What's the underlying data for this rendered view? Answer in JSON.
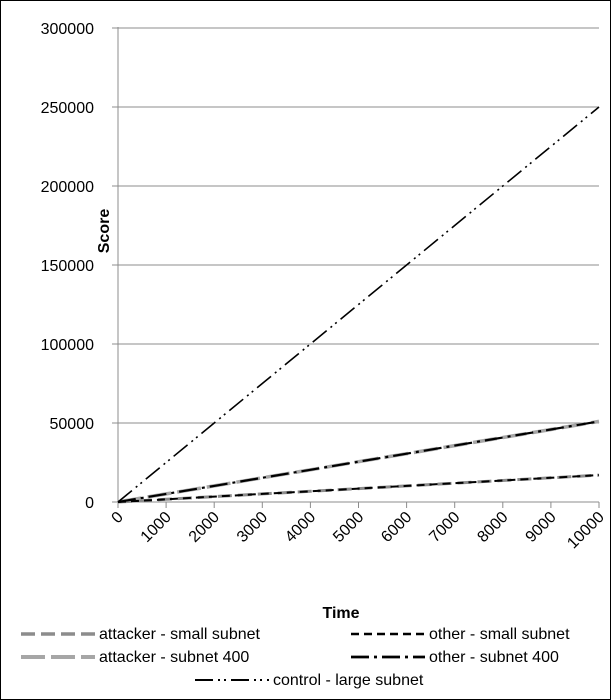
{
  "chart_data": {
    "type": "line",
    "title": "",
    "xlabel": "Time",
    "ylabel": "Score",
    "x": [
      0,
      1000,
      2000,
      3000,
      4000,
      5000,
      6000,
      7000,
      8000,
      9000,
      10000
    ],
    "x_tick_labels": [
      "0",
      "1000",
      "2000",
      "3000",
      "4000",
      "5000",
      "6000",
      "7000",
      "8000",
      "9000",
      "10000"
    ],
    "y_tick_labels": [
      "0",
      "50000",
      "100000",
      "150000",
      "200000",
      "250000",
      "300000"
    ],
    "xlim": [
      0,
      10000
    ],
    "ylim": [
      0,
      300000
    ],
    "grid": "horizontal",
    "legend_position": "bottom",
    "series": [
      {
        "name": "attacker - small subnet",
        "color": "#8c8c8c",
        "dash": "long-dash",
        "values": [
          0,
          1700,
          3400,
          5100,
          6800,
          8500,
          10200,
          11900,
          13600,
          15300,
          17000
        ]
      },
      {
        "name": "other - small subnet",
        "color": "#000000",
        "dash": "dash",
        "values": [
          0,
          1700,
          3400,
          5100,
          6800,
          8500,
          10200,
          11900,
          13600,
          15300,
          17000
        ]
      },
      {
        "name": "attacker - subnet 400",
        "color": "#a6a6a6",
        "dash": "long-dash-thick",
        "values": [
          0,
          5100,
          10200,
          15300,
          20400,
          25500,
          30600,
          35700,
          40800,
          45900,
          51000
        ]
      },
      {
        "name": "other - subnet 400",
        "color": "#000000",
        "dash": "dash-dot",
        "values": [
          0,
          5100,
          10200,
          15300,
          20400,
          25500,
          30600,
          35700,
          40800,
          45900,
          51000
        ]
      },
      {
        "name": "control - large subnet",
        "color": "#000000",
        "dash": "long-dash-dot-dot",
        "values": [
          0,
          25000,
          50000,
          75000,
          100000,
          125000,
          150000,
          175000,
          200000,
          225000,
          250000
        ]
      }
    ]
  }
}
